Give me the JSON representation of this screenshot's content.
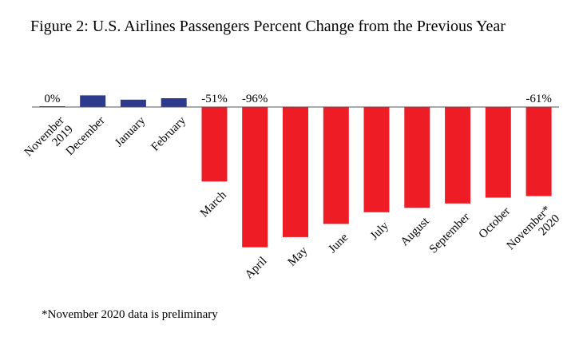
{
  "chart_data": {
    "type": "bar",
    "title": "Figure 2: U.S. Airlines Passengers Percent Change from the Previous Year",
    "categories": [
      [
        "November",
        "2019"
      ],
      [
        "December"
      ],
      [
        "January"
      ],
      [
        "February"
      ],
      [
        "March"
      ],
      [
        "April"
      ],
      [
        "May"
      ],
      [
        "June"
      ],
      [
        "July"
      ],
      [
        "August"
      ],
      [
        "September"
      ],
      [
        "October"
      ],
      [
        "November*",
        "2020"
      ]
    ],
    "values": [
      0,
      8,
      5,
      6,
      -51,
      -96,
      -89,
      -80,
      -72,
      -69,
      -66,
      -62,
      -61
    ],
    "data_labels": [
      "0%",
      "",
      "",
      "",
      "-51%",
      "-96%",
      "",
      "",
      "",
      "",
      "",
      "",
      "-61%"
    ],
    "colors": {
      "positive": "#2e3a8c",
      "negative": "#ee1c25"
    },
    "xlabel": "",
    "ylabel": "",
    "ylim": [
      -100,
      10
    ],
    "grid": false,
    "legend": "none"
  },
  "footnote": "*November 2020 data is preliminary"
}
